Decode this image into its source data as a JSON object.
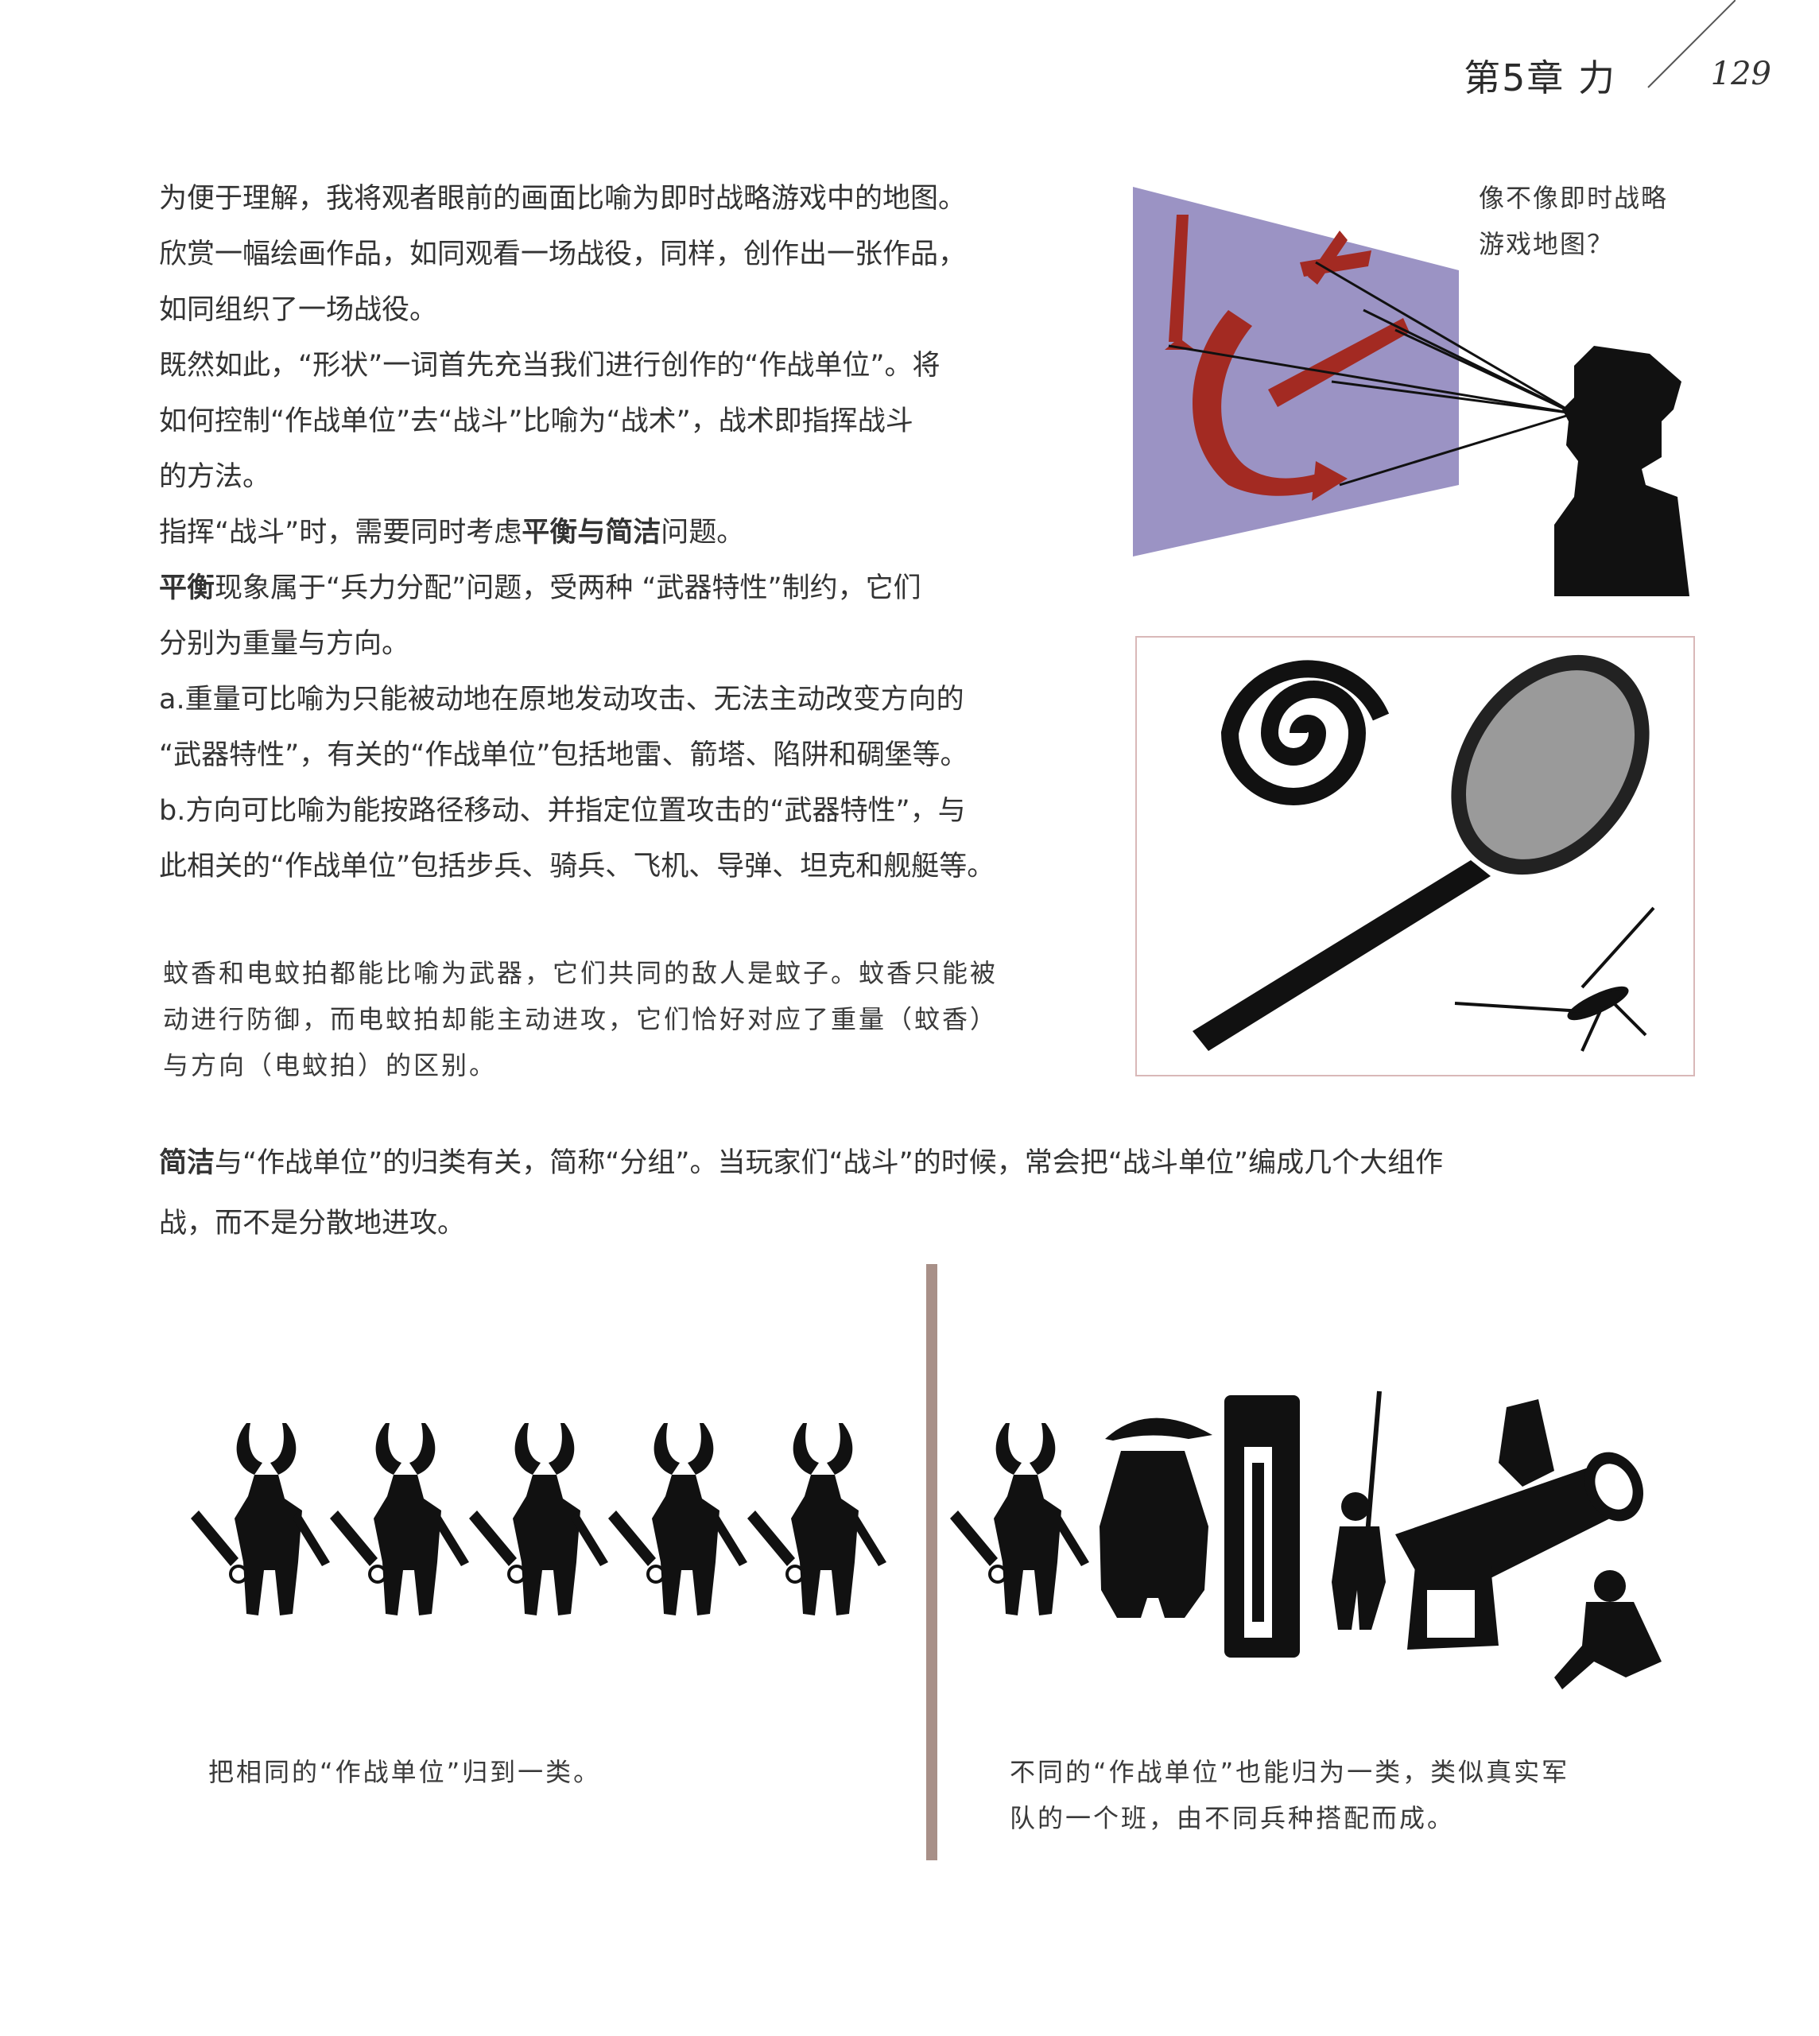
{
  "header": {
    "chapter": "第5章 力",
    "page_number": "129"
  },
  "paragraphs": [
    "为便于理解，我将观者眼前的画面比喻为即时战略游戏中的地图。",
    "欣赏一幅绘画作品，如同观看一场战役，同样，创作出一张作品，",
    "如同组织了一场战役。",
    "既然如此，“形状”一词首先充当我们进行创作的“作战单位”。将",
    "如何控制“作战单位”去“战斗”比喻为“战术”，战术即指挥战斗",
    "的方法。",
    "指挥“战斗”时，需要同时考虑平衡与简洁问题。",
    "平衡现象属于“兵力分配”问题，受两种 “武器特性”制约，它们",
    "分别为重量与方向。",
    "a.重量可比喻为只能被动地在原地发动攻击、无法主动改变方向的",
    "“武器特性”，有关的“作战单位”包括地雷、箭塔、陷阱和碉堡等。",
    "b.方向可比喻为能按路径移动、并指定位置攻击的“武器特性”，与",
    "此相关的“作战单位”包括步兵、骑兵、飞机、导弹、坦克和舰艇等。"
  ],
  "captions": {
    "rts_map": [
      "像不像即时战略",
      "游戏地图？"
    ],
    "mosquito": [
      "蚊香和电蚊拍都能比喻为武器，它们共同的敌人是蚊子。蚊香只能被",
      "动进行防御，而电蚊拍却能主动进攻，它们恰好对应了重量（蚊香）",
      "与方向（电蚊拍）的区别。"
    ],
    "same_units": [
      "把相同的“作战单位”归到一类。"
    ],
    "mixed_units": [
      "不同的“作战单位”也能归为一类，类似真实军",
      "队的一个班，由不同兵种搭配而成。"
    ]
  },
  "grouping_paragraph": [
    "简洁与“作战单位”的归类有关，简称“分组”。当玩家们“战斗”的时候，常会把“战斗单位”编成几个大组作",
    "战，而不是分散地进攻。"
  ],
  "colors": {
    "map_bg": "#9b93c4",
    "arrow_red": "#a32a22",
    "divider": "#a89088",
    "silhouette": "#111111"
  },
  "icons": [
    "eye-viewer-icon",
    "mosquito-coil-icon",
    "fly-swatter-icon",
    "mosquito-icon",
    "warrior-icon",
    "cannon-icon"
  ]
}
